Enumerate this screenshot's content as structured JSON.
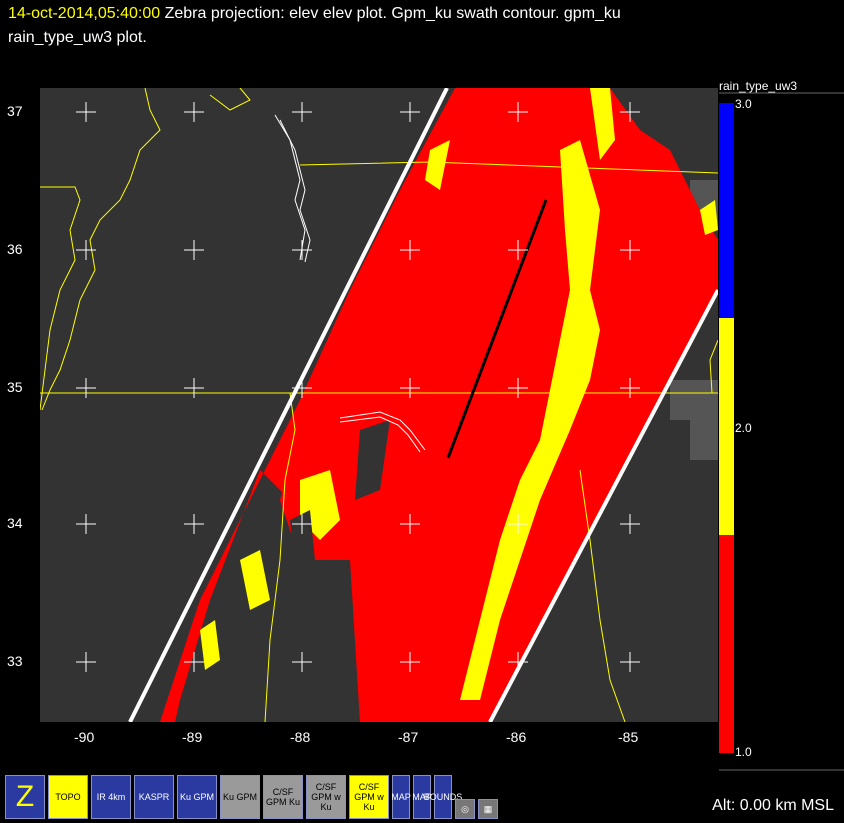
{
  "header": {
    "timestamp": "14-oct-2014,05:40:00",
    "line1_rest": " Zebra projection: elev elev  plot.  Gpm_ku swath contour.  gpm_ku",
    "line2": "rain_type_uw3  plot."
  },
  "map": {
    "lon_labels": [
      "-90",
      "-89",
      "-88",
      "-87",
      "-86",
      "-85"
    ],
    "lat_labels": [
      "37",
      "36",
      "35",
      "34",
      "33"
    ],
    "colors": {
      "background": "#333333",
      "stratiform": "#ff0000",
      "convective": "#ffff00",
      "other": "#0000ff",
      "swath": "#ffffff",
      "border": "#ffff00",
      "track": "#000000"
    }
  },
  "legend": {
    "title": "rain_type_uw3",
    "ticks": [
      "3.0",
      "2.0",
      "1.0"
    ]
  },
  "toolbar": {
    "buttons": [
      {
        "name": "zebra-logo-button",
        "label": "Z"
      },
      {
        "name": "topo-button",
        "label": "TOPO"
      },
      {
        "name": "ir-button",
        "label": "IR 4km"
      },
      {
        "name": "kaspr-button",
        "label": "KASPR"
      },
      {
        "name": "ku-gpm-button",
        "label": "Ku GPM"
      },
      {
        "name": "ku-gpm-2-button",
        "label": "Ku GPM"
      },
      {
        "name": "csf-gpm-ku-button",
        "label": "C/SF GPM Ku"
      },
      {
        "name": "csf-gpm-wku-button",
        "label": "C/SF GPM w Ku"
      },
      {
        "name": "csf-gpm-active-button",
        "label": "C/SF GPM w Ku"
      },
      {
        "name": "map-button",
        "label": "MAP"
      },
      {
        "name": "map-2-button",
        "label": "MAP"
      },
      {
        "name": "bounds-button",
        "label": "BOUNDS"
      }
    ]
  },
  "status": {
    "altitude": "Alt: 0.00 km MSL"
  }
}
